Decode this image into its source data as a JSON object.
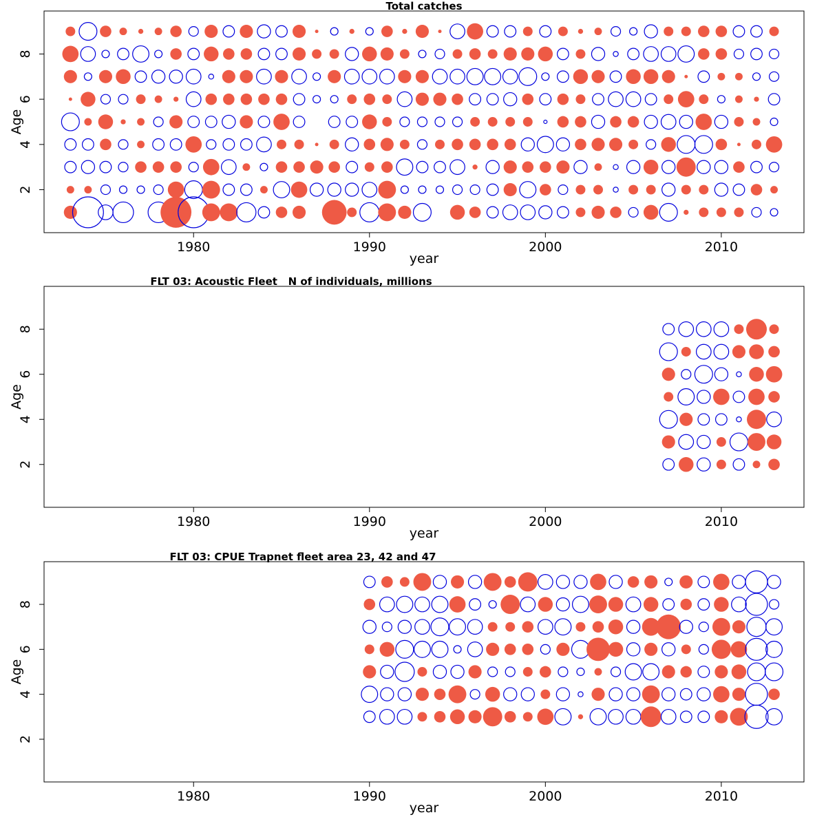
{
  "colors": {
    "positive": "#ee5a45",
    "negative": "#0000dd",
    "axis": "#000000"
  },
  "chart_data": [
    {
      "type": "scatter",
      "subtype": "bubble",
      "title": "Total catches",
      "xlabel": "year",
      "ylabel": "Age",
      "xlim": [
        1971.5,
        2014.7
      ],
      "ylim": [
        0.1,
        9.9
      ],
      "xticks": [
        1980,
        1990,
        2000,
        2010
      ],
      "yticks": [
        2,
        4,
        6,
        8
      ],
      "x": [
        1973,
        1974,
        1975,
        1976,
        1977,
        1978,
        1979,
        1980,
        1981,
        1982,
        1983,
        1984,
        1985,
        1986,
        1987,
        1988,
        1989,
        1990,
        1991,
        1992,
        1993,
        1994,
        1995,
        1996,
        1997,
        1998,
        1999,
        2000,
        2001,
        2002,
        2003,
        2004,
        2005,
        2006,
        2007,
        2008,
        2009,
        2010,
        2011,
        2012,
        2013
      ],
      "ages": [
        1,
        2,
        3,
        4,
        5,
        6,
        7,
        8,
        9
      ],
      "residuals": [
        [
          0.5,
          -1.8,
          -0.6,
          -1.0,
          0,
          -1.0,
          1.8,
          -1.8,
          0.8,
          0.8,
          -0.9,
          -0.4,
          0.4,
          0.5,
          0,
          1.3,
          0.3,
          -0.9,
          0.8,
          0.5,
          -0.8,
          0,
          0.6,
          0.4,
          -0.4,
          -0.6,
          -0.6,
          -0.5,
          -0.4,
          0.3,
          0.5,
          0.4,
          -0.3,
          0.6,
          -0.8,
          0.1,
          0.3,
          0.3,
          0.3,
          -0.3,
          -0.2
        ],
        [
          0.2,
          0.2,
          -0.3,
          -0.2,
          -0.2,
          -0.3,
          0.7,
          -0.8,
          0.8,
          -0.4,
          -0.4,
          0.2,
          -0.7,
          0.7,
          -0.5,
          -0.5,
          -0.5,
          -0.6,
          0.8,
          -0.2,
          -0.2,
          -0.2,
          -0.3,
          -0.3,
          -0.4,
          0.5,
          -0.7,
          0.4,
          -0.3,
          0.3,
          0.3,
          -0.1,
          0.3,
          0.3,
          -0.5,
          0.3,
          0.3,
          -0.5,
          -0.4,
          0.4,
          0.2
        ],
        [
          -0.4,
          -0.5,
          -0.4,
          -0.3,
          0.4,
          0.4,
          0.4,
          -0.3,
          0.7,
          -0.6,
          0.2,
          -0.2,
          0.4,
          0.4,
          0.5,
          0.4,
          -0.4,
          0.3,
          0.4,
          -0.7,
          -0.4,
          -0.4,
          -0.6,
          0.1,
          -0.5,
          0.5,
          0.4,
          0.4,
          0.5,
          -0.5,
          0.2,
          -0.1,
          -0.5,
          0.6,
          -0.5,
          0.9,
          -0.5,
          -0.5,
          0.4,
          -0.4,
          -0.3
        ],
        [
          -0.4,
          -0.4,
          0.4,
          -0.3,
          0.2,
          -0.4,
          -0.4,
          0.7,
          -0.3,
          -0.4,
          -0.4,
          -0.6,
          0.3,
          0.3,
          0.05,
          0.3,
          -0.5,
          0.4,
          0.5,
          0.3,
          -0.3,
          0.3,
          0.4,
          0.4,
          0.4,
          0.4,
          -0.5,
          -0.7,
          -0.5,
          0.4,
          0.5,
          0.5,
          0.3,
          -0.3,
          0.6,
          -0.8,
          -0.8,
          0.4,
          0.05,
          0.3,
          0.7
        ],
        [
          -0.8,
          0.2,
          0.6,
          0.1,
          0.2,
          -0.3,
          0.5,
          -0.4,
          -0.4,
          -0.5,
          0.5,
          -0.4,
          0.7,
          -0.4,
          0,
          -0.4,
          -0.4,
          0.6,
          0.3,
          -0.3,
          -0.3,
          -0.3,
          -0.3,
          0.3,
          0.3,
          0.3,
          0.3,
          -0.05,
          0.4,
          0.4,
          -0.5,
          0.4,
          0.4,
          -0.5,
          -0.6,
          -0.5,
          0.7,
          -0.5,
          0.3,
          0.2,
          -0.2
        ],
        [
          0.05,
          0.6,
          -0.3,
          -0.3,
          0.3,
          0.2,
          0.1,
          -0.6,
          0.4,
          0.4,
          0.4,
          0.4,
          0.4,
          -0.4,
          -0.2,
          -0.2,
          0.3,
          0.4,
          0.3,
          -0.6,
          0.5,
          0.5,
          0.4,
          -0.4,
          -0.4,
          -0.5,
          0.4,
          -0.4,
          0.4,
          0.3,
          -0.4,
          -0.6,
          -0.6,
          -0.4,
          0.3,
          0.7,
          0.3,
          -0.2,
          0.2,
          0.1,
          -0.4
        ],
        [
          0.5,
          -0.2,
          0.5,
          0.6,
          -0.4,
          -0.5,
          -0.5,
          -0.6,
          -0.1,
          0.5,
          0.5,
          -0.6,
          0.5,
          -0.6,
          -0.2,
          0.5,
          -0.6,
          -0.6,
          -0.6,
          0.5,
          0.5,
          -0.6,
          -0.6,
          -0.7,
          -0.7,
          -0.6,
          -0.8,
          -0.2,
          -0.4,
          0.6,
          0.5,
          -0.4,
          0.6,
          0.6,
          0.5,
          0.05,
          -0.4,
          0.2,
          0.2,
          -0.2,
          -0.3
        ],
        [
          0.7,
          -0.6,
          -0.2,
          -0.4,
          -0.7,
          -0.2,
          0.4,
          -0.4,
          0.6,
          0.4,
          0.4,
          -0.4,
          -0.4,
          0.5,
          0.3,
          0.3,
          -0.5,
          0.6,
          0.5,
          0.3,
          -0.2,
          -0.3,
          0.3,
          0.4,
          0.3,
          0.5,
          0.5,
          0.6,
          -0.4,
          0.3,
          -0.5,
          -0.1,
          -0.4,
          -0.6,
          -0.6,
          -0.7,
          0.4,
          0.4,
          -0.3,
          -0.4,
          -0.3
        ],
        [
          0.3,
          -0.8,
          0.4,
          0.2,
          0.1,
          0.2,
          0.4,
          -0.3,
          0.5,
          -0.4,
          0.5,
          -0.5,
          -0.4,
          0.5,
          0.05,
          -0.2,
          0.1,
          -0.2,
          0.4,
          0.1,
          0.5,
          0.05,
          -0.6,
          0.7,
          -0.4,
          -0.4,
          0.3,
          -0.4,
          0.3,
          0.1,
          0.2,
          -0.3,
          -0.2,
          -0.5,
          0.3,
          0.3,
          0.4,
          0.4,
          -0.4,
          -0.4,
          0.3
        ]
      ]
    },
    {
      "type": "scatter",
      "subtype": "bubble",
      "title": "FLT 03: Acoustic Fleet   N of individuals, millions",
      "xlabel": "year",
      "ylabel": "Age",
      "xlim": [
        1971.5,
        2014.7
      ],
      "ylim": [
        0.1,
        9.9
      ],
      "xticks": [
        1980,
        1990,
        2000,
        2010
      ],
      "yticks": [
        2,
        4,
        6,
        8
      ],
      "x": [
        2007,
        2008,
        2009,
        2010,
        2011,
        2012,
        2013
      ],
      "ages": [
        2,
        3,
        4,
        5,
        6,
        7,
        8
      ],
      "residuals": [
        [
          -0.4,
          0.6,
          -0.5,
          0.3,
          -0.4,
          0.2,
          0.4
        ],
        [
          0.5,
          -0.6,
          -0.5,
          0.3,
          -0.8,
          0.8,
          0.6
        ],
        [
          -0.8,
          0.5,
          -0.4,
          -0.4,
          -0.1,
          0.9,
          -0.6
        ],
        [
          0.3,
          -0.7,
          -0.5,
          0.7,
          -0.4,
          0.7,
          0.4
        ],
        [
          0.5,
          -0.3,
          -0.8,
          -0.5,
          -0.1,
          0.6,
          0.7
        ],
        [
          -0.8,
          0.3,
          -0.6,
          -0.6,
          0.5,
          0.6,
          0.4
        ],
        [
          -0.4,
          -0.6,
          -0.6,
          -0.6,
          0.3,
          1.0,
          0.3
        ]
      ]
    },
    {
      "type": "scatter",
      "subtype": "bubble",
      "title": "FLT 03: CPUE Trapnet fleet area 23, 42 and 47",
      "xlabel": "year",
      "ylabel": "Age",
      "xlim": [
        1971.5,
        2014.7
      ],
      "ylim": [
        0.1,
        9.9
      ],
      "xticks": [
        1980,
        1990,
        2000,
        2010
      ],
      "yticks": [
        2,
        4,
        6,
        8
      ],
      "x": [
        1990,
        1991,
        1992,
        1993,
        1994,
        1995,
        1996,
        1997,
        1998,
        1999,
        2000,
        2001,
        2002,
        2003,
        2004,
        2005,
        2006,
        2007,
        2008,
        2009,
        2010,
        2011,
        2012,
        2013
      ],
      "ages": [
        3,
        4,
        5,
        6,
        7,
        8,
        9
      ],
      "residuals": [
        [
          -0.4,
          -0.6,
          -0.6,
          0.3,
          0.4,
          0.6,
          0.5,
          0.9,
          0.4,
          0.3,
          0.7,
          -0.7,
          0.1,
          -0.7,
          -0.6,
          -0.6,
          1.0,
          -0.6,
          -0.4,
          -0.4,
          0.5,
          0.8,
          -1.2,
          -0.7
        ],
        [
          -0.7,
          -0.5,
          -0.5,
          0.5,
          0.4,
          0.8,
          -0.3,
          0.6,
          -0.5,
          -0.5,
          0.3,
          -0.5,
          -0.1,
          0.5,
          -0.5,
          -0.5,
          0.8,
          -0.5,
          -0.4,
          -0.5,
          0.7,
          0.5,
          -1.1,
          0.4
        ],
        [
          0.5,
          -0.5,
          -0.9,
          0.3,
          -0.5,
          -0.5,
          0.5,
          -0.3,
          -0.3,
          0.3,
          0.4,
          -0.3,
          -0.2,
          0.2,
          -0.3,
          -0.7,
          -0.7,
          0.5,
          0.4,
          -0.4,
          0.5,
          0.6,
          -0.8,
          -0.8
        ],
        [
          0.3,
          0.6,
          -0.8,
          -0.7,
          -0.7,
          -0.2,
          -0.6,
          0.5,
          0.4,
          0.4,
          -0.3,
          0.5,
          -0.8,
          1.2,
          0.6,
          -0.5,
          0.5,
          -0.5,
          0.3,
          -0.3,
          0.9,
          0.7,
          -1.1,
          -0.7
        ],
        [
          -0.5,
          -0.3,
          -0.5,
          -0.6,
          -0.8,
          -0.7,
          -0.6,
          0.3,
          0.3,
          0.4,
          -0.6,
          -0.7,
          0.3,
          0.4,
          0.6,
          -0.5,
          0.8,
          1.3,
          -0.5,
          -0.3,
          0.8,
          0.5,
          -0.9,
          -0.7
        ],
        [
          0.4,
          -0.6,
          -0.7,
          -0.6,
          -0.7,
          0.7,
          -0.4,
          -0.2,
          0.9,
          -0.6,
          0.6,
          -0.5,
          -0.7,
          0.8,
          0.6,
          -0.6,
          0.6,
          -0.4,
          0.4,
          -0.4,
          0.6,
          -0.6,
          -1.1,
          -0.3
        ],
        [
          -0.4,
          0.4,
          0.3,
          0.8,
          -0.5,
          0.5,
          -0.5,
          0.8,
          0.4,
          0.9,
          -0.6,
          -0.5,
          -0.5,
          0.7,
          -0.5,
          0.4,
          0.5,
          -0.2,
          0.5,
          -0.4,
          0.7,
          -0.5,
          -1.1,
          -0.5
        ]
      ]
    }
  ]
}
